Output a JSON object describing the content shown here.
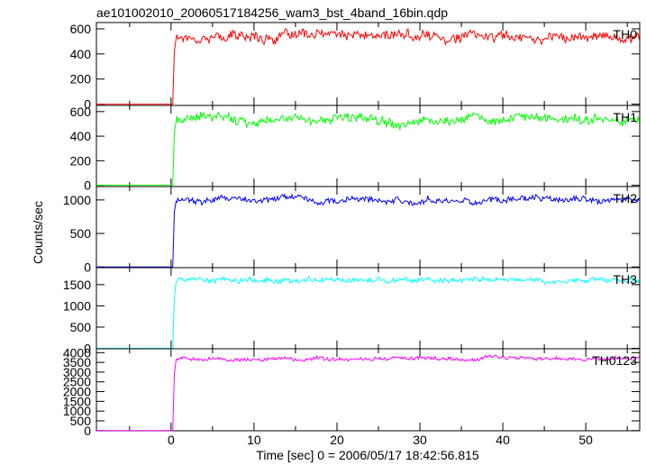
{
  "title": "ae101002010_20060517184256_wam3_bst_4band_16bin.qdp",
  "ylabel": "Counts/sec",
  "xlabel": "Time [sec] 0 = 2006/05/17 18:42:56.815",
  "chart_data": [
    {
      "type": "line",
      "name": "TH0",
      "color": "#ff0000",
      "xlim": [
        -9,
        56.5
      ],
      "ylim": [
        -10,
        650
      ],
      "yticks": [
        0,
        200,
        400,
        600
      ],
      "ytick_labels": [
        "0",
        "200",
        "400",
        "600"
      ],
      "xticks": [
        0,
        10,
        20,
        30,
        40,
        50
      ],
      "xtick_labels": [],
      "pre_level": 0,
      "post_level": 540,
      "noise": 45,
      "x": [
        -9,
        0.2,
        0.4,
        0.6,
        56.5
      ],
      "y": [
        0,
        0,
        420,
        520,
        540
      ]
    },
    {
      "type": "line",
      "name": "TH1",
      "color": "#00ff00",
      "xlim": [
        -9,
        56.5
      ],
      "ylim": [
        -10,
        650
      ],
      "yticks": [
        0,
        200,
        400,
        600
      ],
      "ytick_labels": [
        "0",
        "200",
        "400",
        "600"
      ],
      "xticks": [
        0,
        10,
        20,
        30,
        40,
        50
      ],
      "xtick_labels": [],
      "pre_level": 0,
      "post_level": 540,
      "noise": 45,
      "x": [
        -9,
        0.2,
        0.4,
        0.6,
        56.5
      ],
      "y": [
        0,
        0,
        430,
        520,
        540
      ]
    },
    {
      "type": "line",
      "name": "TH2",
      "color": "#0000ff",
      "xlim": [
        -9,
        56.5
      ],
      "ylim": [
        -10,
        1200
      ],
      "yticks": [
        0,
        500,
        1000
      ],
      "ytick_labels": [
        "0",
        "500",
        "1000"
      ],
      "xticks": [
        0,
        10,
        20,
        30,
        40,
        50
      ],
      "xtick_labels": [],
      "pre_level": 0,
      "post_level": 1000,
      "noise": 55,
      "x": [
        -9,
        0.2,
        0.4,
        0.6,
        56.5
      ],
      "y": [
        0,
        0,
        820,
        980,
        1000
      ]
    },
    {
      "type": "line",
      "name": "TH3",
      "color": "#00ffff",
      "xlim": [
        -9,
        56.5
      ],
      "ylim": [
        -10,
        1900
      ],
      "yticks": [
        0,
        500,
        1000,
        1500
      ],
      "ytick_labels": [
        "0",
        "500",
        "1000",
        "1500"
      ],
      "xticks": [
        0,
        10,
        20,
        30,
        40,
        50
      ],
      "xtick_labels": [],
      "pre_level": 0,
      "post_level": 1600,
      "noise": 70,
      "x": [
        -9,
        0.2,
        0.4,
        0.6,
        56.5
      ],
      "y": [
        0,
        0,
        1200,
        1550,
        1600
      ]
    },
    {
      "type": "line",
      "name": "TH0123",
      "color": "#ff00ff",
      "xlim": [
        -9,
        56.5
      ],
      "ylim": [
        -10,
        4200
      ],
      "yticks": [
        0,
        500,
        1000,
        1500,
        2000,
        2500,
        3000,
        3500,
        4000
      ],
      "ytick_labels": [
        "0",
        "500",
        "1000",
        "1500",
        "2000",
        "2500",
        "3000",
        "3500",
        "4000"
      ],
      "xticks": [
        0,
        10,
        20,
        30,
        40,
        50
      ],
      "xtick_labels": [
        "0",
        "10",
        "20",
        "30",
        "40",
        "50"
      ],
      "pre_level": 0,
      "post_level": 3700,
      "noise": 110,
      "x": [
        -9,
        0.2,
        0.4,
        0.6,
        56.5
      ],
      "y": [
        0,
        0,
        2900,
        3600,
        3700
      ]
    }
  ]
}
